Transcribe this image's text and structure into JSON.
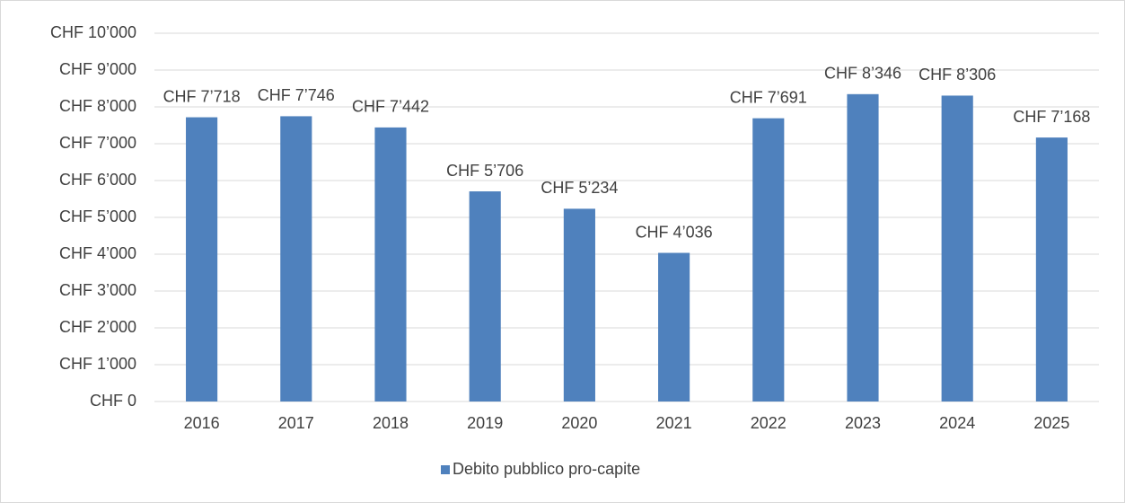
{
  "chart_data": {
    "type": "bar",
    "categories": [
      "2016",
      "2017",
      "2018",
      "2019",
      "2020",
      "2021",
      "2022",
      "2023",
      "2024",
      "2025"
    ],
    "series": [
      {
        "name": "Debito pubblico pro-capite",
        "color": "#4f81bd",
        "values": [
          7718,
          7746,
          7442,
          5706,
          5234,
          4036,
          7691,
          8346,
          8306,
          7168
        ],
        "value_labels": [
          "CHF 7’718",
          "CHF 7’746",
          "CHF 7’442",
          "CHF 5’706",
          "CHF 5’234",
          "CHF 4’036",
          "CHF 7’691",
          "CHF 8’346",
          "CHF 8’306",
          "CHF 7’168"
        ]
      }
    ],
    "ylim": [
      0,
      10000
    ],
    "yticks": [
      {
        "value": 0,
        "label": "CHF 0"
      },
      {
        "value": 1000,
        "label": "CHF 1’000"
      },
      {
        "value": 2000,
        "label": "CHF 2’000"
      },
      {
        "value": 3000,
        "label": "CHF 3’000"
      },
      {
        "value": 4000,
        "label": "CHF 4’000"
      },
      {
        "value": 5000,
        "label": "CHF 5’000"
      },
      {
        "value": 6000,
        "label": "CHF 6’000"
      },
      {
        "value": 7000,
        "label": "CHF 7’000"
      },
      {
        "value": 8000,
        "label": "CHF 8’000"
      },
      {
        "value": 9000,
        "label": "CHF 9’000"
      },
      {
        "value": 10000,
        "label": "CHF 10’000"
      }
    ],
    "grid": true,
    "legend": "bottom"
  }
}
